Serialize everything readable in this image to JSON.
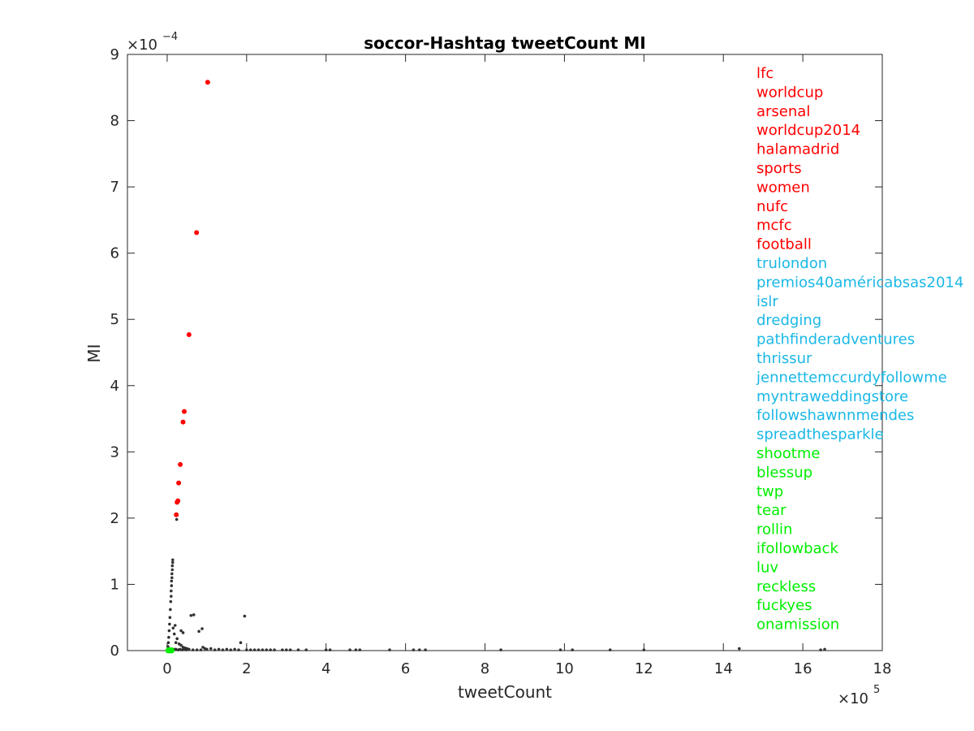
{
  "chart_data": {
    "type": "scatter",
    "title": "soccor-Hashtag tweetCount MI",
    "xlabel": "tweetCount",
    "ylabel": "MI",
    "x_multiplier": {
      "base": "×10",
      "exp": "5"
    },
    "y_multiplier": {
      "base": "×10",
      "exp": "−4"
    },
    "xlim": [
      -1,
      18
    ],
    "ylim": [
      0,
      9
    ],
    "x_ticks": [
      0,
      2,
      4,
      6,
      8,
      10,
      12,
      14,
      16,
      18
    ],
    "y_ticks": [
      0,
      1,
      2,
      3,
      4,
      5,
      6,
      7,
      8,
      9
    ],
    "grid": false,
    "legend_position": "right",
    "colors": {
      "top": "#ff0000",
      "middle": "#1ab8e6",
      "bottom": "#00ee00",
      "other": "#333333"
    },
    "series": [
      {
        "group": "top",
        "points": [
          [
            1.02,
            8.58
          ],
          [
            0.74,
            6.31
          ],
          [
            0.55,
            4.77
          ],
          [
            0.43,
            3.61
          ],
          [
            0.4,
            3.45
          ],
          [
            0.33,
            2.81
          ],
          [
            0.29,
            2.53
          ],
          [
            0.27,
            2.26
          ],
          [
            0.25,
            2.24
          ],
          [
            0.23,
            2.05
          ]
        ]
      },
      {
        "group": "bottom",
        "points": [
          [
            0.02,
            0.0
          ],
          [
            0.04,
            0.0
          ],
          [
            0.06,
            0.0
          ],
          [
            0.08,
            0.0
          ],
          [
            0.1,
            0.0
          ],
          [
            0.12,
            0.0
          ],
          [
            0.03,
            0.01
          ],
          [
            0.07,
            0.01
          ],
          [
            0.11,
            0.01
          ],
          [
            0.05,
            0.0
          ]
        ]
      },
      {
        "group": "other",
        "points": [
          [
            0.24,
            1.98
          ],
          [
            0.14,
            1.37
          ],
          [
            0.14,
            1.33
          ],
          [
            0.13,
            1.28
          ],
          [
            0.13,
            1.22
          ],
          [
            0.12,
            1.16
          ],
          [
            0.12,
            1.1
          ],
          [
            0.11,
            1.05
          ],
          [
            0.11,
            0.98
          ],
          [
            0.1,
            0.9
          ],
          [
            0.1,
            0.82
          ],
          [
            0.09,
            0.74
          ],
          [
            0.08,
            0.62
          ],
          [
            0.07,
            0.5
          ],
          [
            0.06,
            0.4
          ],
          [
            0.05,
            0.3
          ],
          [
            0.04,
            0.2
          ],
          [
            0.03,
            0.12
          ],
          [
            0.02,
            0.06
          ],
          [
            0.15,
            0.34
          ],
          [
            0.2,
            0.38
          ],
          [
            0.18,
            0.25
          ],
          [
            0.25,
            0.18
          ],
          [
            0.22,
            0.12
          ],
          [
            0.3,
            0.1
          ],
          [
            0.35,
            0.08
          ],
          [
            0.4,
            0.05
          ],
          [
            0.45,
            0.04
          ],
          [
            0.5,
            0.03
          ],
          [
            0.6,
            0.53
          ],
          [
            0.67,
            0.54
          ],
          [
            0.35,
            0.3
          ],
          [
            0.4,
            0.27
          ],
          [
            0.8,
            0.29
          ],
          [
            0.88,
            0.33
          ],
          [
            0.9,
            0.05
          ],
          [
            0.95,
            0.03
          ],
          [
            1.1,
            0.03
          ],
          [
            1.3,
            0.02
          ],
          [
            1.5,
            0.02
          ],
          [
            1.7,
            0.02
          ],
          [
            1.85,
            0.12
          ],
          [
            1.95,
            0.52
          ],
          [
            2.0,
            0.01
          ],
          [
            2.2,
            0.01
          ],
          [
            2.4,
            0.01
          ],
          [
            2.6,
            0.01
          ],
          [
            2.9,
            0.01
          ],
          [
            3.1,
            0.01
          ],
          [
            3.3,
            0.01
          ],
          [
            3.5,
            0.01
          ],
          [
            4.0,
            0.01
          ],
          [
            4.1,
            0.01
          ],
          [
            4.6,
            0.01
          ],
          [
            4.75,
            0.01
          ],
          [
            4.85,
            0.01
          ],
          [
            5.6,
            0.01
          ],
          [
            6.2,
            0.01
          ],
          [
            6.35,
            0.01
          ],
          [
            6.5,
            0.01
          ],
          [
            8.4,
            0.01
          ],
          [
            9.9,
            0.01
          ],
          [
            10.2,
            0.01
          ],
          [
            11.15,
            0.01
          ],
          [
            12.0,
            0.01
          ],
          [
            14.4,
            0.03
          ],
          [
            16.45,
            0.01
          ],
          [
            16.55,
            0.02
          ],
          [
            0.16,
            0.01
          ],
          [
            0.18,
            0.02
          ],
          [
            0.22,
            0.02
          ],
          [
            0.28,
            0.01
          ],
          [
            0.32,
            0.02
          ],
          [
            0.38,
            0.01
          ],
          [
            0.42,
            0.02
          ],
          [
            0.48,
            0.01
          ],
          [
            0.55,
            0.02
          ],
          [
            0.65,
            0.01
          ],
          [
            0.75,
            0.01
          ],
          [
            0.85,
            0.01
          ],
          [
            1.0,
            0.02
          ],
          [
            1.2,
            0.01
          ],
          [
            1.4,
            0.01
          ],
          [
            1.6,
            0.01
          ],
          [
            1.8,
            0.01
          ],
          [
            2.1,
            0.01
          ],
          [
            2.3,
            0.01
          ],
          [
            2.5,
            0.01
          ],
          [
            2.7,
            0.01
          ],
          [
            3.0,
            0.01
          ]
        ]
      }
    ],
    "legend": [
      {
        "label": "lfc",
        "group": "top"
      },
      {
        "label": "worldcup",
        "group": "top"
      },
      {
        "label": "arsenal",
        "group": "top"
      },
      {
        "label": "worldcup2014",
        "group": "top"
      },
      {
        "label": "halamadrid",
        "group": "top"
      },
      {
        "label": "sports",
        "group": "top"
      },
      {
        "label": "women",
        "group": "top"
      },
      {
        "label": "nufc",
        "group": "top"
      },
      {
        "label": "mcfc",
        "group": "top"
      },
      {
        "label": "football",
        "group": "top"
      },
      {
        "label": "trulondon",
        "group": "middle"
      },
      {
        "label": "premios40américabsas2014",
        "group": "middle"
      },
      {
        "label": "islr",
        "group": "middle"
      },
      {
        "label": "dredging",
        "group": "middle"
      },
      {
        "label": "pathfinderadventures",
        "group": "middle"
      },
      {
        "label": "thrissur",
        "group": "middle"
      },
      {
        "label": "jennettemccurdyfollowme",
        "group": "middle"
      },
      {
        "label": "myntraweddingstore",
        "group": "middle"
      },
      {
        "label": "followshawnnmendes",
        "group": "middle"
      },
      {
        "label": "spreadthesparkle",
        "group": "middle"
      },
      {
        "label": "shootme",
        "group": "bottom"
      },
      {
        "label": "blessup",
        "group": "bottom"
      },
      {
        "label": "twp",
        "group": "bottom"
      },
      {
        "label": "tear",
        "group": "bottom"
      },
      {
        "label": "rollin",
        "group": "bottom"
      },
      {
        "label": "ifollowback",
        "group": "bottom"
      },
      {
        "label": "luv",
        "group": "bottom"
      },
      {
        "label": "reckless",
        "group": "bottom"
      },
      {
        "label": "fuckyes",
        "group": "bottom"
      },
      {
        "label": "onamission",
        "group": "bottom"
      }
    ]
  }
}
